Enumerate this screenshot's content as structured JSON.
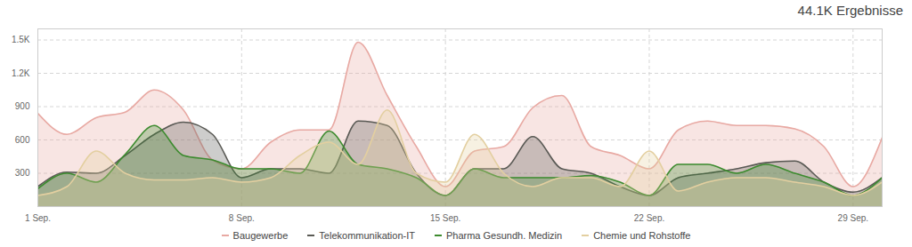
{
  "chart_data": {
    "type": "area",
    "title": "44.1K Ergebnisse",
    "x": [
      1,
      2,
      3,
      4,
      5,
      6,
      7,
      8,
      9,
      10,
      11,
      12,
      13,
      14,
      15,
      16,
      17,
      18,
      19,
      20,
      21,
      22,
      23,
      24,
      25,
      26,
      27,
      28,
      29,
      30
    ],
    "xlim": [
      1,
      30
    ],
    "xticks": [
      {
        "value": 1,
        "label": "1 Sep."
      },
      {
        "value": 8,
        "label": "8 Sep."
      },
      {
        "value": 15,
        "label": "15 Sep."
      },
      {
        "value": 22,
        "label": "22 Sep."
      },
      {
        "value": 29,
        "label": "29 Sep."
      }
    ],
    "ylim": [
      0,
      1600
    ],
    "yticks": [
      300,
      600,
      900,
      {
        "value": 1200,
        "label": "1.2K"
      },
      {
        "value": 1500,
        "label": "1.5K"
      }
    ],
    "grid": true,
    "legend": "bottom",
    "series": [
      {
        "name": "Baugewerbe",
        "color": "#e8a9a3",
        "values": [
          840,
          650,
          800,
          850,
          1050,
          870,
          420,
          340,
          580,
          690,
          690,
          1480,
          1000,
          540,
          180,
          500,
          540,
          890,
          1000,
          540,
          460,
          340,
          690,
          770,
          730,
          730,
          700,
          540,
          180,
          620
        ]
      },
      {
        "name": "Telekommunikation-IT",
        "color": "#5a5a55",
        "values": [
          180,
          310,
          300,
          460,
          650,
          760,
          650,
          260,
          340,
          340,
          300,
          770,
          730,
          300,
          100,
          340,
          340,
          630,
          340,
          300,
          180,
          100,
          260,
          300,
          340,
          395,
          410,
          220,
          130,
          260
        ]
      },
      {
        "name": "Pharma Gesundh. Medizin",
        "color": "#3d8b2f",
        "values": [
          160,
          300,
          220,
          470,
          730,
          460,
          420,
          340,
          340,
          300,
          680,
          380,
          340,
          260,
          100,
          340,
          260,
          260,
          260,
          280,
          220,
          100,
          380,
          380,
          300,
          380,
          300,
          220,
          100,
          260
        ]
      },
      {
        "name": "Chemie und Rohstoffe",
        "color": "#e3cfa0",
        "values": [
          100,
          180,
          500,
          300,
          240,
          240,
          260,
          220,
          260,
          460,
          580,
          380,
          870,
          300,
          220,
          650,
          300,
          180,
          260,
          260,
          180,
          500,
          140,
          220,
          260,
          260,
          220,
          180,
          100,
          220
        ]
      }
    ]
  }
}
